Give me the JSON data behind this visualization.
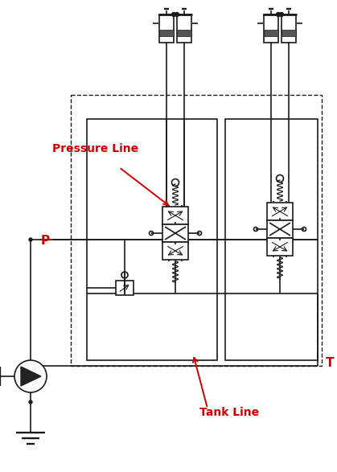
{
  "bg": "#ffffff",
  "lc": "#1a1a1a",
  "rc": "#cc0000",
  "lw": 1.2,
  "fig_w": 4.19,
  "fig_h": 5.87,
  "dpi": 100,
  "P_label": "P",
  "T_label": "T",
  "pressure_line_label": "Pressure Line",
  "tank_line_label": "Tank Line"
}
